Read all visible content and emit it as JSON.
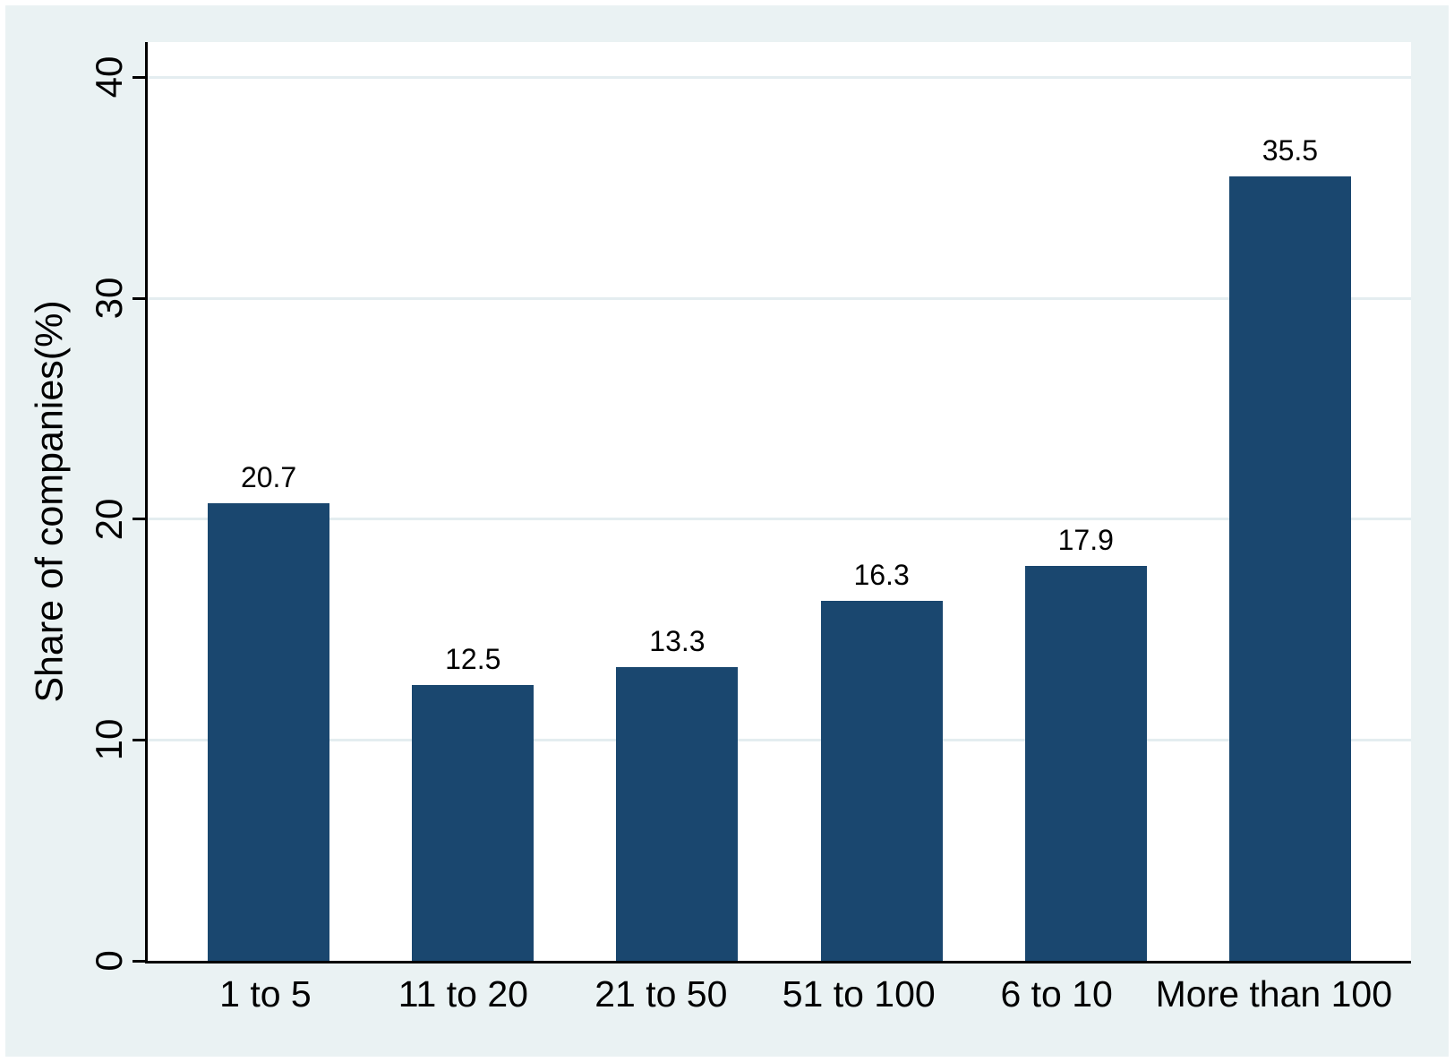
{
  "chart_data": {
    "type": "bar",
    "categories": [
      "1 to 5",
      "11 to 20",
      "21 to 50",
      "51 to 100",
      "6 to 10",
      "More than 100"
    ],
    "values": [
      20.7,
      12.5,
      13.3,
      16.3,
      17.9,
      35.5
    ],
    "value_labels": [
      "20.7",
      "12.5",
      "13.3",
      "16.3",
      "17.9",
      "35.5"
    ],
    "title": "",
    "xlabel": "",
    "ylabel": "Share of companies(%)",
    "yticks": [
      0,
      10,
      20,
      30,
      40
    ],
    "ytick_labels": [
      "0",
      "10",
      "20",
      "30",
      "40"
    ],
    "ylim": [
      0,
      41.6
    ],
    "grid": "horizontal-gridlines-on",
    "legend": "none",
    "colors": {
      "bar": "#1a476f",
      "figure_background": "#eaf2f3",
      "plot_background": "#ffffff",
      "gridline": "#e4edf0",
      "axis": "#000000",
      "text": "#000000",
      "page_border": "#ffffff"
    }
  }
}
